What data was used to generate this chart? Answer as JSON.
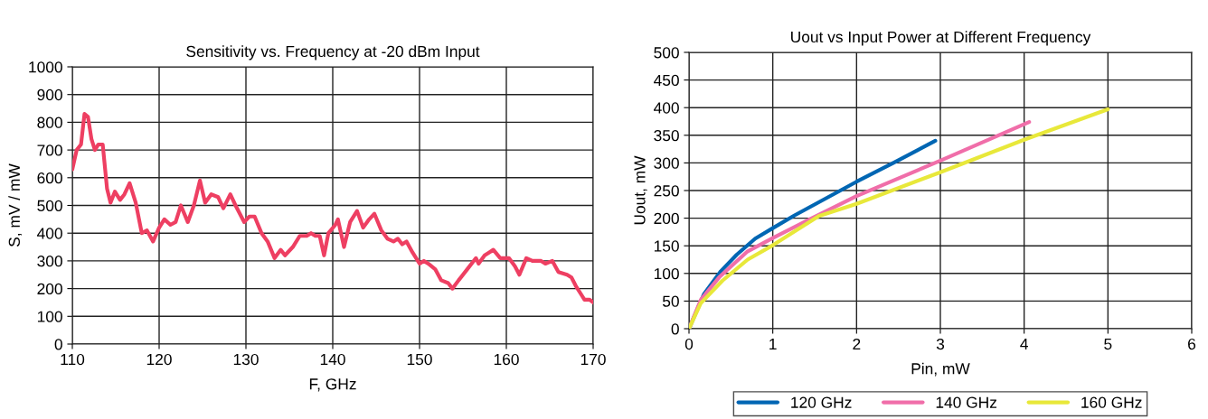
{
  "chart_data": [
    {
      "type": "line",
      "title": "Sensitivity vs. Frequency at -20 dBm Input",
      "xlabel": "F, GHz",
      "ylabel": "S, mV / mW",
      "xlim": [
        110,
        170
      ],
      "xticks": [
        110,
        120,
        130,
        140,
        150,
        160,
        170
      ],
      "ylim": [
        0,
        1000
      ],
      "yticks": [
        0,
        100,
        200,
        300,
        400,
        500,
        600,
        700,
        800,
        900,
        1000
      ],
      "grid": true,
      "legend": false,
      "series": [
        {
          "color": "#ee3f62",
          "x": [
            110,
            110.5,
            111,
            111.4,
            111.8,
            112.2,
            112.6,
            113,
            113.5,
            114,
            114.4,
            114.9,
            115.5,
            116,
            116.6,
            117.3,
            118,
            118.6,
            119.3,
            120,
            120.6,
            121.3,
            121.9,
            122.5,
            123.3,
            124,
            124.7,
            125.3,
            126,
            126.8,
            127.4,
            128.2,
            128.8,
            129.8,
            130.4,
            131,
            131.8,
            132.5,
            133.3,
            134,
            134.5,
            135.4,
            136.2,
            137,
            137.5,
            138,
            138.5,
            139,
            139.5,
            140.3,
            140.6,
            141.3,
            142,
            142.8,
            143.5,
            144.2,
            144.8,
            145.6,
            146.3,
            147,
            147.5,
            148,
            148.5,
            149.2,
            150,
            150.5,
            151,
            151.8,
            152.5,
            153.3,
            153.8,
            154.5,
            155.5,
            156.5,
            156.8,
            157.5,
            158,
            158.5,
            159.3,
            160,
            160.3,
            161,
            161.5,
            162.3,
            163,
            164,
            164.5,
            165.3,
            166,
            167,
            167.5,
            168,
            168.6,
            169,
            169.6,
            170
          ],
          "values": [
            630,
            700,
            720,
            830,
            820,
            740,
            700,
            720,
            720,
            560,
            510,
            550,
            520,
            540,
            580,
            510,
            400,
            410,
            370,
            420,
            450,
            430,
            440,
            500,
            440,
            500,
            590,
            510,
            540,
            530,
            490,
            540,
            500,
            440,
            460,
            460,
            400,
            370,
            310,
            340,
            320,
            350,
            390,
            390,
            400,
            390,
            390,
            320,
            400,
            430,
            450,
            350,
            440,
            480,
            420,
            450,
            470,
            410,
            380,
            370,
            380,
            360,
            370,
            330,
            290,
            300,
            290,
            270,
            230,
            220,
            200,
            230,
            270,
            310,
            290,
            320,
            330,
            340,
            310,
            310,
            310,
            280,
            250,
            310,
            300,
            300,
            290,
            300,
            260,
            250,
            240,
            210,
            180,
            160,
            160,
            150
          ]
        }
      ]
    },
    {
      "type": "line",
      "title": "Uout vs Input Power at Different Frequency",
      "xlabel": "Pin, mW",
      "ylabel": "Uout, mW",
      "xlim": [
        0,
        6
      ],
      "xticks": [
        0,
        1,
        2,
        3,
        4,
        5,
        6
      ],
      "ylim": [
        0,
        500
      ],
      "yticks": [
        0,
        50,
        100,
        150,
        200,
        250,
        300,
        350,
        400,
        450,
        500
      ],
      "grid": true,
      "legend": "bottom",
      "series": [
        {
          "name": "120 GHz",
          "color": "#0066b3",
          "x": [
            0,
            0.18,
            0.38,
            0.57,
            0.79,
            1,
            1.26,
            2,
            2.45,
            2.94
          ],
          "values": [
            0,
            63,
            104,
            134,
            163,
            182,
            205,
            266,
            301,
            340
          ]
        },
        {
          "name": "140 GHz",
          "color": "#f06ea9",
          "x": [
            0,
            0.14,
            0.36,
            0.7,
            1,
            1.44,
            2,
            3,
            4.06
          ],
          "values": [
            0,
            52,
            93,
            140,
            164,
            198,
            240,
            304,
            374
          ]
        },
        {
          "name": "160 GHz",
          "color": "#e8e83a",
          "x": [
            0,
            0.14,
            0.4,
            0.7,
            1,
            1.55,
            2,
            3,
            4,
            5
          ],
          "values": [
            0,
            46,
            87,
            125,
            151,
            204,
            226,
            283,
            342,
            397
          ]
        }
      ]
    }
  ]
}
